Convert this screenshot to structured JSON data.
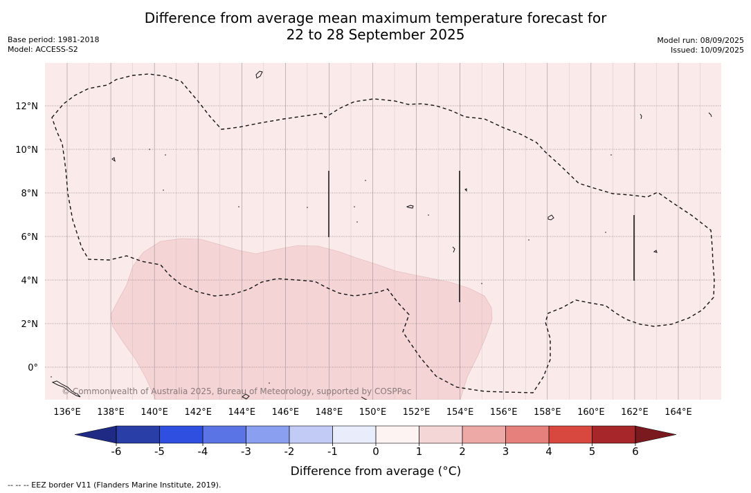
{
  "title": {
    "line1": "Difference from average mean maximum temperature forecast for",
    "line2": "22 to 28 September 2025"
  },
  "meta_left": {
    "base_period": "Base period: 1981-2018",
    "model": "Model: ACCESS-S2"
  },
  "meta_right": {
    "model_run": "Model run: 08/09/2025",
    "issued": "Issued: 10/09/2025"
  },
  "map": {
    "lat_labels": [
      "12°N",
      "10°N",
      "8°N",
      "6°N",
      "4°N",
      "2°N",
      "0°"
    ],
    "lon_labels": [
      "136°E",
      "138°E",
      "140°E",
      "142°E",
      "144°E",
      "146°E",
      "148°E",
      "150°E",
      "152°E",
      "154°E",
      "156°E",
      "158°E",
      "160°E",
      "162°E",
      "164°E"
    ],
    "copyright": "© Commonwealth of Australia 2025, Bureau of Meteorology, supported by COSPPac",
    "background_color": "#fbeaea",
    "anomaly_region_color": "#f4d4d4"
  },
  "colorbar": {
    "ticks": [
      "-6",
      "-5",
      "-4",
      "-3",
      "-2",
      "-1",
      "0",
      "1",
      "2",
      "3",
      "4",
      "5",
      "6"
    ],
    "colors": [
      "#2a3ea8",
      "#2f4fe0",
      "#5a74e6",
      "#8b9ff0",
      "#c2cbf6",
      "#e9ecfb",
      "#fdf3f3",
      "#f5d6d6",
      "#eda9a5",
      "#e5807c",
      "#d8483f",
      "#a6262a"
    ],
    "under_color": "#1e2a84",
    "over_color": "#7a1a1e",
    "title": "Difference from average (°C)"
  },
  "footnote": "--  --  -- EEZ border V11 (Flanders Marine Institute, 2019)."
}
